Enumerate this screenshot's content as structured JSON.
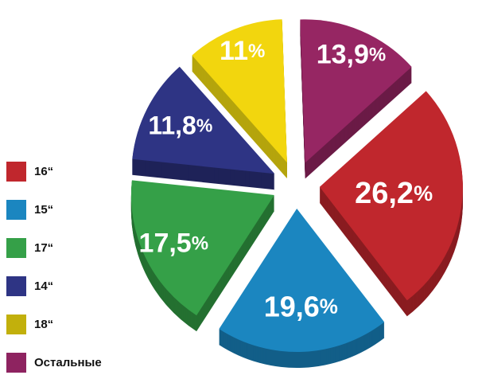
{
  "chart_data": {
    "type": "pie",
    "title": "",
    "style": "exploded-3d",
    "values_are_percent": true,
    "start_angle": -2,
    "background": "#ffffff",
    "label_color": "#ffffff",
    "slices": [
      {
        "category": "Остальные",
        "value": 13.9,
        "display": "13,9",
        "unit": "%",
        "color": "#962663",
        "side_color": "#6b1b46",
        "label_factor": 0.82,
        "label_size": 34
      },
      {
        "category": "16“",
        "value": 26.2,
        "display": "26,2",
        "unit": "%",
        "color": "#c0272d",
        "side_color": "#8a1c20",
        "label_factor": 0.52,
        "label_size": 38
      },
      {
        "category": "15“",
        "value": 19.6,
        "display": "19,6",
        "unit": "%",
        "color": "#1b86c0",
        "side_color": "#125e88",
        "label_factor": 0.68,
        "label_size": 36
      },
      {
        "category": "17“",
        "value": 17.5,
        "display": "17,5",
        "unit": "%",
        "color": "#35a048",
        "side_color": "#247031",
        "label_factor": 0.78,
        "label_size": 34
      },
      {
        "category": "14“",
        "value": 11.8,
        "display": "11,8",
        "unit": "%",
        "color": "#2e3484",
        "side_color": "#1e2258",
        "label_factor": 0.74,
        "label_size": 32
      },
      {
        "category": "18“",
        "value": 11.0,
        "display": "11",
        "unit": "%",
        "color": "#f2d60e",
        "side_color": "#b5a50d",
        "label_factor": 0.84,
        "label_size": 34
      }
    ],
    "legend_position": "left"
  },
  "legend": {
    "items": [
      {
        "label": "16“",
        "color": "#c0272d"
      },
      {
        "label": "15“",
        "color": "#1b86c0"
      },
      {
        "label": "17“",
        "color": "#35a048"
      },
      {
        "label": "14“",
        "color": "#2e3484"
      },
      {
        "label": "18“",
        "color": "#c2b00c"
      },
      {
        "label": "Остальные",
        "color": "#8e2360"
      }
    ]
  }
}
